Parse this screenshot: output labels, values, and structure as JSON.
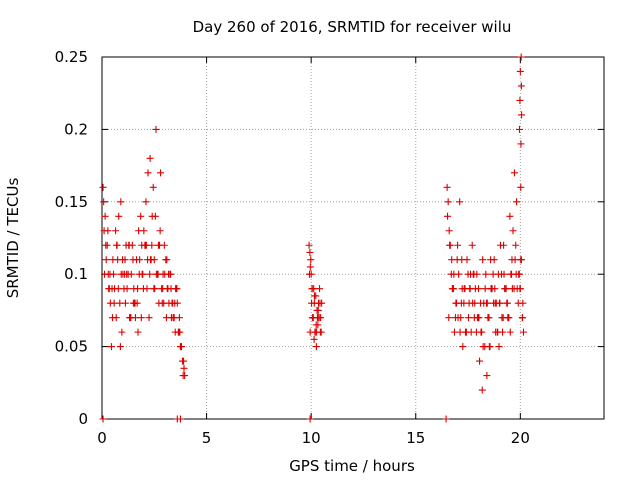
{
  "chart_data": {
    "type": "scatter",
    "title": "Day 260 of 2016, SRMTID for receiver wilu",
    "xlabel": "GPS time / hours",
    "ylabel": "SRMTID / TECUs",
    "xlim": [
      0,
      24
    ],
    "ylim": [
      0,
      0.25
    ],
    "x_ticks": [
      0,
      5,
      10,
      15,
      20
    ],
    "y_ticks": [
      0,
      0.05,
      0.1,
      0.15,
      0.2,
      0.25
    ],
    "x_tick_labels": [
      "0",
      "5",
      "10",
      "15",
      "20"
    ],
    "y_tick_labels": [
      "0",
      "0.05",
      "0.1",
      "0.15",
      "0.2",
      "0.25"
    ],
    "grid": true,
    "marker": "+",
    "series": [
      {
        "name": "SRMTID",
        "color": "#dd0000",
        "x": [
          0.05,
          0.15,
          0.25,
          0.35,
          0.45,
          0.55,
          0.65,
          0.75,
          0.85,
          0.95,
          1.05,
          1.15,
          1.25,
          1.35,
          1.45,
          1.55,
          1.65,
          1.75,
          1.85,
          1.95,
          2.05,
          2.15,
          2.25,
          2.35,
          2.45,
          2.55,
          2.65,
          2.75,
          2.85,
          2.95,
          3.05,
          3.15,
          3.25,
          3.35,
          3.45,
          3.55,
          3.65,
          3.75,
          3.85,
          3.95,
          0.1,
          0.2,
          0.3,
          0.4,
          0.5,
          0.6,
          0.7,
          0.8,
          0.9,
          1.0,
          1.1,
          1.2,
          1.3,
          1.4,
          1.5,
          1.6,
          1.7,
          1.8,
          1.9,
          2.0,
          2.1,
          2.2,
          2.3,
          2.4,
          2.5,
          2.6,
          2.7,
          2.8,
          2.9,
          3.0,
          3.1,
          3.2,
          3.3,
          3.4,
          3.5,
          3.6,
          3.7,
          3.8,
          3.9,
          0.12,
          0.32,
          0.52,
          0.72,
          0.92,
          1.12,
          1.32,
          1.52,
          1.72,
          1.92,
          2.12,
          2.32,
          2.52,
          2.72,
          2.92,
          3.12,
          3.32,
          3.52,
          3.72,
          3.92,
          0.18,
          0.38,
          0.58,
          0.78,
          0.98,
          1.18,
          1.38,
          1.58,
          1.78,
          1.98,
          2.18,
          2.38,
          2.58,
          2.78,
          2.98,
          3.18,
          3.38,
          3.58,
          3.78,
          0.08,
          0.28,
          0.48,
          0.68,
          0.88,
          1.08,
          1.28,
          1.48,
          1.68,
          1.88,
          2.08,
          2.28,
          2.48,
          2.68,
          2.88,
          3.08,
          3.28,
          3.48,
          3.68,
          3.88,
          9.9,
          9.95,
          10.0,
          10.05,
          10.1,
          10.15,
          10.2,
          10.25,
          10.3,
          10.35,
          10.4,
          10.45,
          10.5,
          9.92,
          9.98,
          10.02,
          10.08,
          10.12,
          10.18,
          10.22,
          10.28,
          10.32,
          10.38,
          10.42,
          10.48,
          9.94,
          10.04,
          10.14,
          10.24,
          10.34,
          10.44,
          9.96,
          10.06,
          10.16,
          10.26,
          10.36,
          16.5,
          16.6,
          16.7,
          16.8,
          16.9,
          17.0,
          17.1,
          17.2,
          17.3,
          17.4,
          17.5,
          17.6,
          17.7,
          17.8,
          17.9,
          18.0,
          18.1,
          18.2,
          18.3,
          18.4,
          18.5,
          18.6,
          18.7,
          18.8,
          18.9,
          19.0,
          19.1,
          19.2,
          19.3,
          19.4,
          19.5,
          19.6,
          19.7,
          19.8,
          19.9,
          20.0,
          20.1,
          16.55,
          16.65,
          16.75,
          16.85,
          16.95,
          17.05,
          17.15,
          17.25,
          17.35,
          17.45,
          17.55,
          17.65,
          17.75,
          17.85,
          17.95,
          18.05,
          18.15,
          18.25,
          18.35,
          18.45,
          18.55,
          18.65,
          18.75,
          18.85,
          18.95,
          19.05,
          19.15,
          19.25,
          19.35,
          19.45,
          19.55,
          19.65,
          19.75,
          19.85,
          19.95,
          20.05,
          20.15,
          16.52,
          16.72,
          16.92,
          17.12,
          17.32,
          17.52,
          17.72,
          17.92,
          18.12,
          18.32,
          18.52,
          18.72,
          18.92,
          19.12,
          19.32,
          19.52,
          19.72,
          19.92,
          20.12,
          16.62,
          16.82,
          17.02,
          17.22,
          17.42,
          17.62,
          17.82,
          18.02,
          18.22,
          18.42,
          18.62,
          18.82,
          19.02,
          19.22,
          19.42,
          19.62,
          19.82,
          20.02,
          16.58,
          16.78,
          16.98,
          17.18,
          17.38,
          17.58,
          17.78,
          17.98,
          18.18,
          18.38,
          18.58,
          18.78,
          18.98,
          19.18,
          19.38,
          19.58,
          19.78,
          19.98,
          20.1,
          19.96,
          19.98,
          20.0,
          20.02,
          20.04,
          20.05,
          20.06,
          20.03,
          0.05,
          3.6,
          3.75,
          9.95,
          16.45
        ],
        "y": [
          0.16,
          0.14,
          0.12,
          0.09,
          0.05,
          0.1,
          0.13,
          0.11,
          0.08,
          0.06,
          0.09,
          0.12,
          0.1,
          0.07,
          0.12,
          0.08,
          0.11,
          0.13,
          0.14,
          0.1,
          0.12,
          0.09,
          0.07,
          0.11,
          0.16,
          0.14,
          0.1,
          0.12,
          0.09,
          0.08,
          0.11,
          0.09,
          0.1,
          0.08,
          0.07,
          0.09,
          0.06,
          0.05,
          0.04,
          0.03,
          0.13,
          0.11,
          0.1,
          0.08,
          0.07,
          0.09,
          0.12,
          0.14,
          0.15,
          0.1,
          0.11,
          0.09,
          0.12,
          0.1,
          0.08,
          0.07,
          0.09,
          0.11,
          0.12,
          0.13,
          0.15,
          0.17,
          0.18,
          0.14,
          0.11,
          0.1,
          0.12,
          0.17,
          0.09,
          0.1,
          0.11,
          0.08,
          0.09,
          0.07,
          0.06,
          0.08,
          0.07,
          0.05,
          0.04,
          0.1,
          0.09,
          0.11,
          0.12,
          0.1,
          0.08,
          0.07,
          0.09,
          0.06,
          0.1,
          0.12,
          0.11,
          0.09,
          0.08,
          0.1,
          0.09,
          0.07,
          0.09,
          0.06,
          0.035,
          0.12,
          0.1,
          0.08,
          0.09,
          0.11,
          0.1,
          0.07,
          0.08,
          0.1,
          0.09,
          0.11,
          0.12,
          0.2,
          0.13,
          0.12,
          0.1,
          0.08,
          0.09,
          0.05,
          0.15,
          0.13,
          0.09,
          0.07,
          0.05,
          0.1,
          0.12,
          0.11,
          0.08,
          0.07,
          0.12,
          0.1,
          0.09,
          0.1,
          0.08,
          0.07,
          0.1,
          0.08,
          0.06,
          0.03,
          0.12,
          0.06,
          0.1,
          0.09,
          0.07,
          0.08,
          0.06,
          0.05,
          0.07,
          0.08,
          0.09,
          0.07,
          0.08,
          0.1,
          0.11,
          0.08,
          0.07,
          0.09,
          0.06,
          0.085,
          0.075,
          0.065,
          0.07,
          0.08,
          0.06,
          0.115,
          0.09,
          0.055,
          0.065,
          0.075,
          0.06,
          0.105,
          0.07,
          0.085,
          0.06,
          0.07,
          0.16,
          0.13,
          0.1,
          0.09,
          0.07,
          0.12,
          0.15,
          0.11,
          0.08,
          0.06,
          0.1,
          0.09,
          0.12,
          0.07,
          0.06,
          0.09,
          0.08,
          0.11,
          0.05,
          0.03,
          0.07,
          0.09,
          0.1,
          0.08,
          0.06,
          0.08,
          0.1,
          0.12,
          0.09,
          0.07,
          0.14,
          0.11,
          0.09,
          0.1,
          0.08,
          0.09,
          0.07,
          0.15,
          0.12,
          0.09,
          0.06,
          0.08,
          0.1,
          0.07,
          0.05,
          0.09,
          0.11,
          0.08,
          0.06,
          0.1,
          0.09,
          0.07,
          0.04,
          0.06,
          0.08,
          0.1,
          0.07,
          0.05,
          0.09,
          0.11,
          0.08,
          0.1,
          0.12,
          0.06,
          0.09,
          0.08,
          0.07,
          0.1,
          0.13,
          0.11,
          0.09,
          0.1,
          0.11,
          0.06,
          0.14,
          0.11,
          0.08,
          0.06,
          0.09,
          0.07,
          0.08,
          0.1,
          0.06,
          0.09,
          0.05,
          0.08,
          0.06,
          0.07,
          0.09,
          0.06,
          0.17,
          0.1,
          0.08,
          0.12,
          0.1,
          0.07,
          0.09,
          0.06,
          0.1,
          0.08,
          0.07,
          0.05,
          0.08,
          0.09,
          0.06,
          0.08,
          0.1,
          0.07,
          0.09,
          0.15,
          0.11,
          0.07,
          0.09,
          0.11,
          0.08,
          0.06,
          0.09,
          0.1,
          0.07,
          0.02,
          0.08,
          0.11,
          0.09,
          0.05,
          0.07,
          0.08,
          0.1,
          0.12,
          0.09,
          0.07,
          0.2,
          0.22,
          0.24,
          0.16,
          0.25,
          0.23,
          0.21,
          0.19,
          0,
          0,
          0,
          0,
          0
        ]
      }
    ]
  }
}
